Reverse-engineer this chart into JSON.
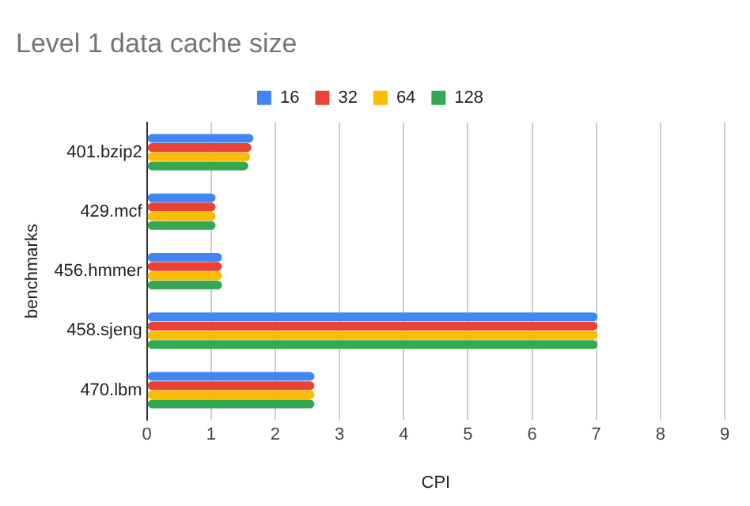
{
  "chart_data": {
    "type": "bar",
    "orientation": "horizontal",
    "title": "Level 1 data cache size",
    "xlabel": "CPI",
    "ylabel": "benchmarks",
    "categories": [
      "401.bzip2",
      "429.mcf",
      "456.hmmer",
      "458.sjeng",
      "470.lbm"
    ],
    "series": [
      {
        "name": "16",
        "color": "#4285f4",
        "values": [
          1.66,
          1.07,
          1.17,
          7.02,
          2.61
        ]
      },
      {
        "name": "32",
        "color": "#ea4335",
        "values": [
          1.63,
          1.07,
          1.17,
          7.02,
          2.61
        ]
      },
      {
        "name": "64",
        "color": "#fbbc04",
        "values": [
          1.61,
          1.07,
          1.17,
          7.02,
          2.61
        ]
      },
      {
        "name": "128",
        "color": "#34a853",
        "values": [
          1.58,
          1.07,
          1.17,
          7.02,
          2.61
        ]
      }
    ],
    "xlim": [
      0,
      9
    ],
    "xticks": [
      0,
      1,
      2,
      3,
      4,
      5,
      6,
      7,
      8,
      9
    ],
    "grid": "x",
    "legend": "top"
  }
}
